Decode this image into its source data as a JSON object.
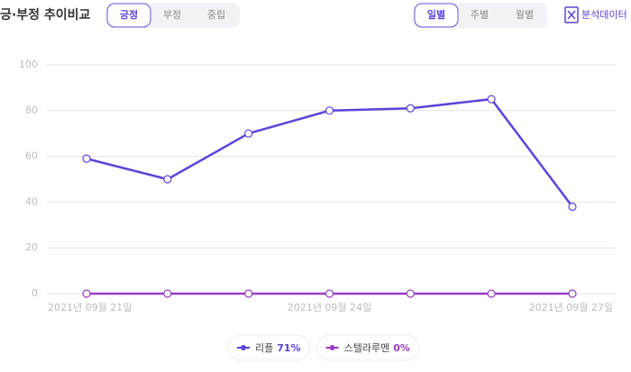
{
  "header": {
    "title": "긍·부정 추이비교",
    "sentiment_tabs": [
      "긍정",
      "부정",
      "중립"
    ],
    "period_tabs": [
      "일별",
      "주별",
      "월별"
    ],
    "analysis_button": "분석데이터"
  },
  "chart_data": {
    "type": "line",
    "categories": [
      "2021년 09월 21일",
      null,
      null,
      "2021년 09월 24일",
      null,
      null,
      "2021년 09월 27일"
    ],
    "series": [
      {
        "name": "리플",
        "color": "#5b45d9",
        "share": "71%",
        "values": [
          59,
          50,
          70,
          80,
          81,
          85,
          38
        ]
      },
      {
        "name": "스텔라루멘",
        "color": "#9a3cc2",
        "share": "0%",
        "values": [
          0,
          0,
          0,
          0,
          0,
          0,
          0
        ]
      }
    ],
    "ylim": [
      0,
      100
    ],
    "yticks": [
      0,
      20,
      40,
      60,
      80,
      100
    ],
    "grid": true
  }
}
